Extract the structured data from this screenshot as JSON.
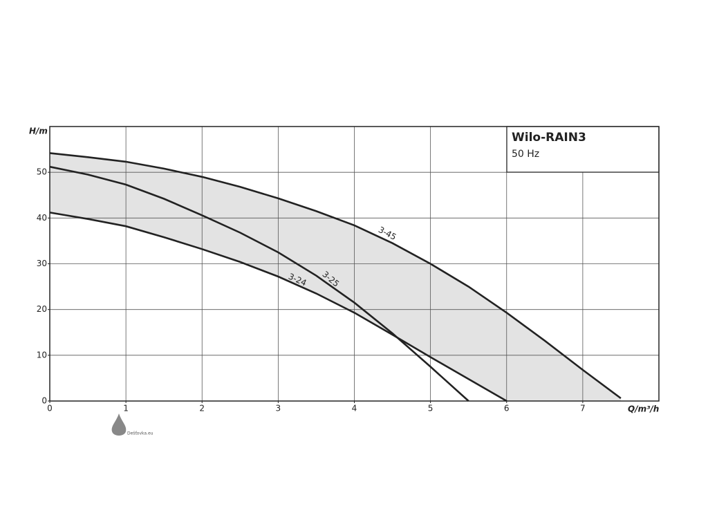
{
  "chart_data": {
    "type": "line",
    "title": "Wilo-RAIN3",
    "subtitle": "50 Hz",
    "x_label": "Q/m³/h",
    "y_label": "H/m",
    "x": [
      0,
      0.5,
      1,
      1.5,
      2,
      2.5,
      3,
      3.5,
      4,
      4.5,
      5,
      5.5,
      6,
      6.5,
      7,
      7.5
    ],
    "series": [
      {
        "name": "3-45",
        "color": "#222222",
        "values": [
          54.2,
          53.3,
          52.3,
          50.8,
          49,
          46.8,
          44.3,
          41.5,
          38.4,
          34.5,
          30,
          25,
          19.3,
          13.2,
          6.8,
          0.6
        ]
      },
      {
        "name": "3-25",
        "color": "#222222",
        "values": [
          51.2,
          49.5,
          47.3,
          44.2,
          40.6,
          36.8,
          32.5,
          27.4,
          21.5,
          14.8,
          7.5,
          0,
          null,
          null,
          null,
          null
        ]
      },
      {
        "name": "3-24",
        "color": "#222222",
        "values": [
          41.2,
          39.8,
          38.2,
          35.8,
          33.2,
          30.4,
          27.2,
          23.5,
          19.3,
          14.5,
          9.6,
          4.8,
          0,
          null,
          null,
          null
        ]
      }
    ],
    "area_color": "#e3e3e3",
    "xlim": [
      0,
      8
    ],
    "xticks": [
      0,
      1,
      2,
      3,
      4,
      5,
      6,
      7
    ],
    "ylim": [
      0,
      60
    ],
    "yticks": [
      0,
      10,
      20,
      30,
      40,
      50
    ],
    "grid": true
  },
  "watermark": "Dešťovka.eu"
}
